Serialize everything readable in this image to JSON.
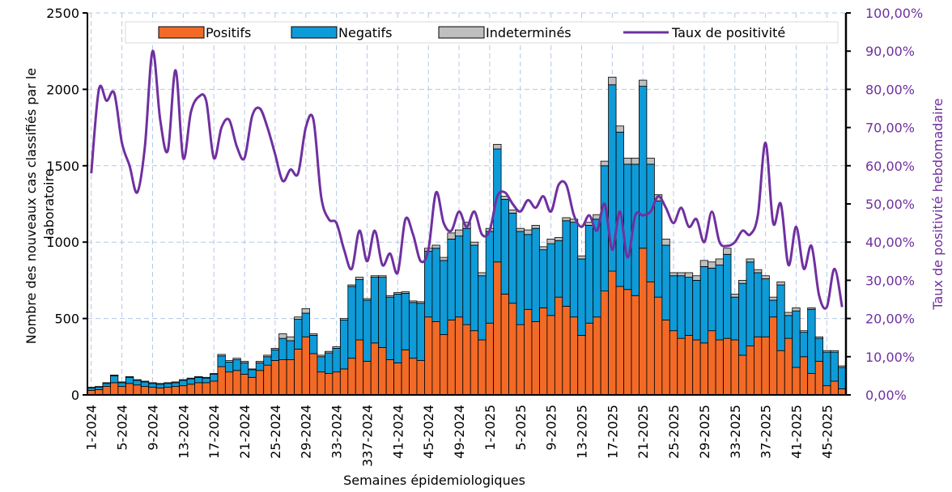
{
  "chart_data": {
    "type": "bar_line",
    "xlabel": "Semaines épidemiologiques",
    "ylabel": "Nombre des nouveaux cas classifiés par le laboratoire",
    "y2label": "Taux de positivité hebdomadaire",
    "categories": [
      "1-2024",
      null,
      null,
      null,
      "5-2024",
      null,
      null,
      null,
      "9-2024",
      null,
      null,
      null,
      "13-2024",
      null,
      null,
      null,
      "17-2024",
      null,
      null,
      null,
      "21-2024",
      null,
      null,
      null,
      "25-2024",
      null,
      null,
      null,
      "29-2024",
      null,
      null,
      null,
      "33-2024",
      null,
      null,
      null,
      "337-2024",
      null,
      null,
      null,
      "41-2024",
      null,
      null,
      null,
      "45-2024",
      null,
      null,
      null,
      "49-2024",
      null,
      null,
      null,
      "1-2025",
      null,
      null,
      null,
      "5-2025",
      null,
      null,
      null,
      "9-2025",
      null,
      null,
      null,
      "13-2025",
      null,
      null,
      null,
      "17-2025",
      null,
      null,
      null,
      "21-2025",
      null,
      null,
      null,
      "25-2025",
      null,
      null,
      null,
      "29-2025",
      null,
      null,
      null,
      "33-2025",
      null,
      null,
      null,
      "37-2025",
      null,
      null,
      null,
      "41-2025",
      null,
      null,
      null,
      "45-2025",
      null,
      null
    ],
    "series": [
      {
        "name": "Positifs",
        "color": "#f26a26",
        "values": [
          30,
          35,
          55,
          80,
          55,
          75,
          65,
          55,
          50,
          45,
          50,
          55,
          60,
          70,
          80,
          80,
          90,
          185,
          150,
          160,
          135,
          115,
          160,
          195,
          225,
          230,
          230,
          300,
          380,
          270,
          150,
          140,
          150,
          170,
          240,
          360,
          220,
          340,
          310,
          230,
          210,
          295,
          240,
          225,
          510,
          480,
          395,
          490,
          510,
          460,
          420,
          360,
          470,
          870,
          660,
          600,
          460,
          560,
          480,
          570,
          520,
          640,
          580,
          510,
          390,
          470,
          510,
          680,
          810,
          710,
          690,
          650,
          960,
          740,
          640,
          490,
          420,
          370,
          390,
          360,
          340,
          420,
          360,
          370,
          360,
          260,
          320,
          380,
          380,
          510,
          290,
          370,
          180,
          250,
          140,
          220,
          60,
          90,
          40
        ]
      },
      {
        "name": "Negatifs",
        "color": "#0e9bd8",
        "values": [
          15,
          15,
          20,
          45,
          25,
          40,
          30,
          30,
          25,
          25,
          25,
          25,
          35,
          35,
          35,
          30,
          45,
          70,
          65,
          70,
          75,
          50,
          50,
          55,
          70,
          140,
          125,
          195,
          155,
          120,
          100,
          135,
          155,
          320,
          470,
          395,
          400,
          430,
          460,
          410,
          450,
          370,
          365,
          375,
          430,
          480,
          485,
          530,
          530,
          630,
          560,
          420,
          600,
          740,
          620,
          590,
          610,
          490,
          610,
          380,
          470,
          370,
          560,
          620,
          500,
          640,
          640,
          820,
          1220,
          1010,
          820,
          860,
          1060,
          770,
          630,
          490,
          360,
          410,
          380,
          390,
          500,
          410,
          490,
          550,
          280,
          470,
          550,
          420,
          380,
          110,
          430,
          150,
          370,
          160,
          420,
          150,
          220,
          190,
          140
        ]
      },
      {
        "name": "Indeterminés",
        "color": "#bfbfbf",
        "values": [
          5,
          5,
          5,
          5,
          5,
          5,
          5,
          5,
          5,
          5,
          5,
          5,
          5,
          5,
          5,
          5,
          5,
          10,
          10,
          10,
          10,
          5,
          10,
          10,
          10,
          30,
          25,
          15,
          30,
          10,
          10,
          10,
          10,
          10,
          10,
          15,
          10,
          10,
          10,
          10,
          10,
          10,
          10,
          10,
          20,
          20,
          20,
          40,
          40,
          40,
          20,
          20,
          20,
          30,
          20,
          20,
          20,
          30,
          20,
          20,
          30,
          20,
          20,
          20,
          20,
          20,
          30,
          30,
          50,
          40,
          40,
          40,
          40,
          40,
          40,
          40,
          20,
          20,
          30,
          30,
          40,
          40,
          40,
          40,
          20,
          20,
          20,
          20,
          20,
          20,
          20,
          20,
          20,
          10,
          10,
          10,
          10,
          10,
          10
        ]
      },
      {
        "name": "Taux de positivité",
        "color": "#7030a0",
        "axis": "y2",
        "values": [
          58,
          80,
          77,
          79,
          66,
          60,
          53,
          65,
          90,
          72,
          64,
          85,
          62,
          74,
          78,
          77,
          62,
          70,
          72,
          65,
          62,
          73,
          75,
          70,
          63,
          56,
          59,
          58,
          70,
          72,
          52,
          46,
          45,
          38,
          33,
          43,
          35,
          43,
          34,
          37,
          32,
          46,
          42,
          35,
          38,
          53,
          45,
          43,
          48,
          44,
          48,
          42,
          43,
          52,
          53,
          50,
          48,
          51,
          49,
          52,
          48,
          55,
          55,
          47,
          44,
          47,
          43,
          50,
          38,
          48,
          36,
          47,
          47,
          48,
          52,
          49,
          45,
          49,
          44,
          46,
          40,
          48,
          40,
          39,
          40,
          43,
          42,
          47,
          66,
          45,
          50,
          34,
          44,
          33,
          39,
          26,
          23,
          33,
          23
        ]
      }
    ],
    "ylim": [
      0,
      2500
    ],
    "yticks": [
      0,
      500,
      1000,
      1500,
      2000,
      2500
    ],
    "y2lim": [
      0,
      100
    ],
    "y2ticks": [
      {
        "value": 0,
        "label": "0,00%"
      },
      {
        "value": 10,
        "label": "10,00%"
      },
      {
        "value": 20,
        "label": "20,00%"
      },
      {
        "value": 30,
        "label": "30,00%"
      },
      {
        "value": 40,
        "label": "40,00%"
      },
      {
        "value": 50,
        "label": "50,00%"
      },
      {
        "value": 60,
        "label": "60,00%"
      },
      {
        "value": 70,
        "label": "70,00%"
      },
      {
        "value": 80,
        "label": "80,00%"
      },
      {
        "value": 90,
        "label": "90,00%"
      },
      {
        "value": 100,
        "label": "100,00%"
      }
    ],
    "grid": true,
    "legend": "top"
  }
}
